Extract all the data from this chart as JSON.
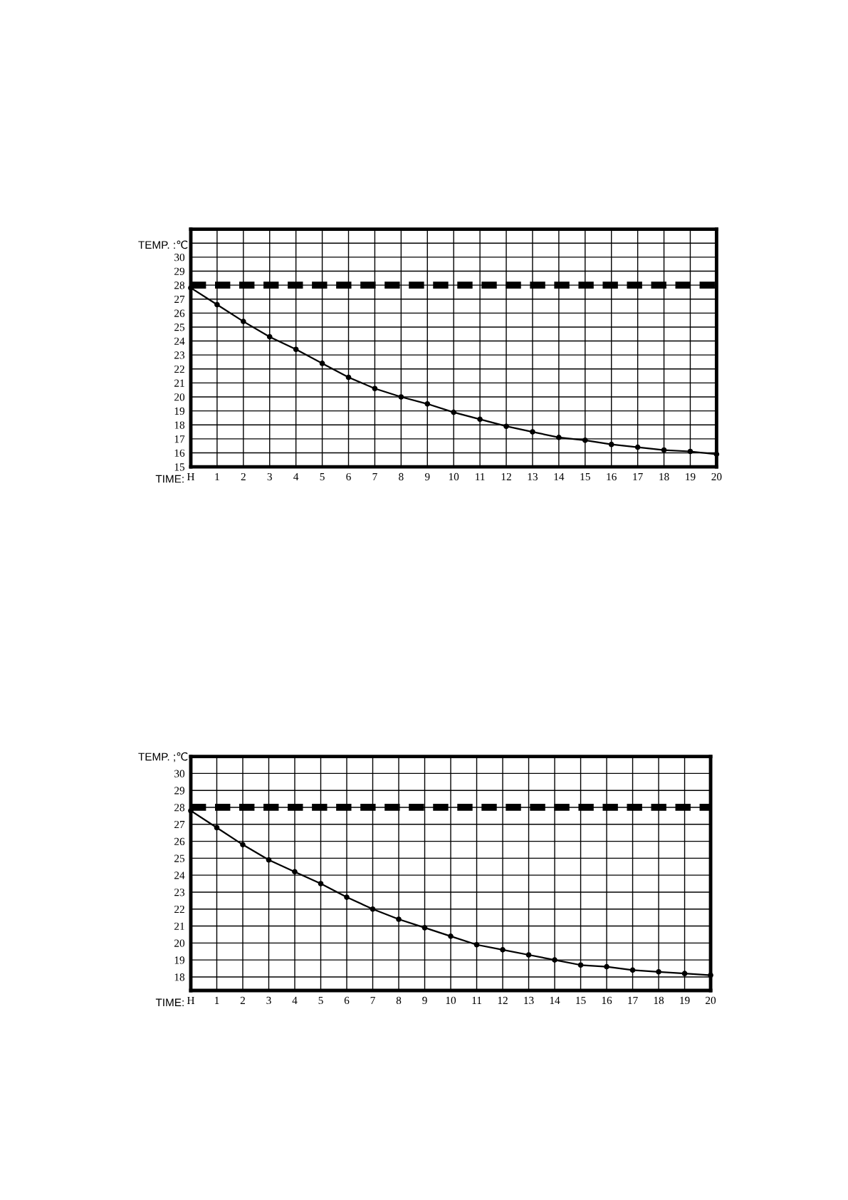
{
  "chart_data": [
    {
      "type": "line",
      "ylabel": "TEMP. :℃",
      "xlabel": "TIME:",
      "categories": [
        "H",
        "1",
        "2",
        "3",
        "4",
        "5",
        "6",
        "7",
        "8",
        "9",
        "10",
        "11",
        "12",
        "13",
        "14",
        "15",
        "16",
        "17",
        "18",
        "19",
        "20"
      ],
      "series": [
        {
          "color": "#000000",
          "values": [
            27.8,
            26.6,
            25.4,
            24.3,
            23.4,
            22.4,
            21.4,
            20.6,
            20.0,
            19.5,
            18.9,
            18.4,
            17.9,
            17.5,
            17.1,
            16.9,
            16.6,
            16.4,
            16.2,
            16.1,
            15.9
          ]
        }
      ],
      "ylim": [
        15,
        32
      ],
      "yticks": [
        15,
        16,
        17,
        18,
        19,
        20,
        21,
        22,
        23,
        24,
        25,
        26,
        27,
        28,
        29,
        30,
        {
          "value": 31,
          "label": null
        }
      ],
      "ref_lines": [
        {
          "axis": "y",
          "value": 28,
          "color": "#000000",
          "line_style": "dashed"
        }
      ],
      "grid": true,
      "marker": "circle",
      "line_style": "solid"
    },
    {
      "type": "line",
      "ylabel": "TEMP. ;℃",
      "xlabel": "TIME:",
      "categories": [
        "H",
        "1",
        "2",
        "3",
        "4",
        "5",
        "6",
        "7",
        "8",
        "9",
        "10",
        "11",
        "12",
        "13",
        "14",
        "15",
        "16",
        "17",
        "18",
        "19",
        "20"
      ],
      "series": [
        {
          "color": "#000000",
          "values": [
            27.8,
            26.8,
            25.8,
            24.9,
            24.2,
            23.5,
            22.7,
            22.0,
            21.4,
            20.9,
            20.4,
            19.9,
            19.6,
            19.3,
            19.0,
            18.7,
            18.6,
            18.4,
            18.3,
            18.2,
            18.1
          ]
        }
      ],
      "ylim": [
        17.2,
        31
      ],
      "yticks": [
        18,
        19,
        20,
        21,
        22,
        23,
        24,
        25,
        26,
        27,
        28,
        29,
        30
      ],
      "ref_lines": [
        {
          "axis": "y",
          "value": 28,
          "color": "#000000",
          "line_style": "dashed"
        }
      ],
      "grid": true,
      "marker": "circle",
      "line_style": "solid"
    }
  ]
}
